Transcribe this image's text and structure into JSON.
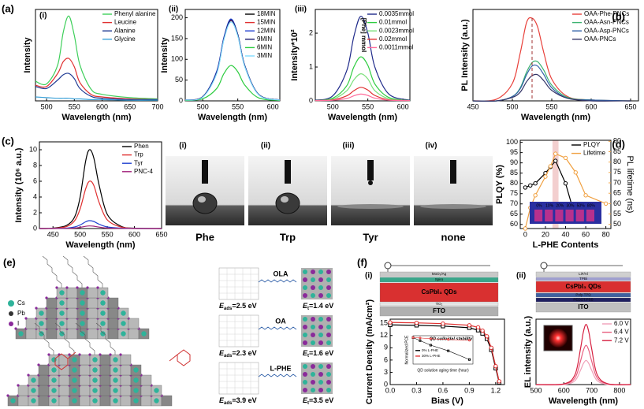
{
  "panel_letters": {
    "a": "(a)",
    "b": "(b)",
    "c": "(c)",
    "d": "(d)",
    "e": "(e)",
    "f": "(f)"
  },
  "chart_data": [
    {
      "type": "line",
      "panel_label": "(i)",
      "xlabel": "Wavelength (nm)",
      "ylabel": "Intensity",
      "xlim": [
        480,
        700
      ],
      "ylim": [
        0,
        140
      ],
      "xticks": [
        500,
        550,
        600,
        650,
        700
      ],
      "legend": "upper right",
      "smooth": true,
      "x": [
        480,
        500,
        520,
        530,
        540,
        550,
        560,
        580,
        600,
        650,
        700
      ],
      "series": [
        {
          "name": "Phenyl alanine",
          "color": "#3ecf5a",
          "values": [
            30,
            26,
            55,
            105,
            130,
            100,
            55,
            18,
            10,
            5,
            3
          ]
        },
        {
          "name": "Leucine",
          "color": "#e03030",
          "values": [
            24,
            22,
            42,
            60,
            65,
            52,
            28,
            10,
            6,
            3,
            2
          ]
        },
        {
          "name": "Alanine",
          "color": "#1f3a93",
          "values": [
            22,
            19,
            32,
            40,
            42,
            34,
            19,
            7,
            4,
            2,
            2
          ]
        },
        {
          "name": "Glycine",
          "color": "#3aa0d8",
          "values": [
            6,
            5,
            4,
            4,
            4,
            3,
            3,
            2,
            2,
            1,
            1
          ]
        }
      ]
    },
    {
      "type": "line",
      "panel_label": "(ii)",
      "xlabel": "Wavelength (nm)",
      "ylabel": "Intensity",
      "xlim": [
        475,
        610
      ],
      "ylim": [
        0,
        220
      ],
      "xticks": [
        500,
        550,
        600
      ],
      "yticks": [
        0,
        50,
        100,
        150,
        200
      ],
      "legend": "upper right",
      "smooth": true,
      "x": [
        475,
        500,
        520,
        530,
        540,
        550,
        560,
        580,
        610
      ],
      "series": [
        {
          "name": "18MIN",
          "color": "#000000",
          "values": [
            2,
            10,
            70,
            150,
            195,
            160,
            85,
            15,
            2
          ]
        },
        {
          "name": "15MIN",
          "color": "#e03030",
          "values": [
            2,
            10,
            68,
            148,
            193,
            158,
            83,
            15,
            2
          ]
        },
        {
          "name": "12MIN",
          "color": "#2040d0",
          "values": [
            2,
            10,
            72,
            152,
            197,
            160,
            85,
            15,
            2
          ]
        },
        {
          "name": "9MIN",
          "color": "#1a1a6e",
          "values": [
            2,
            10,
            69,
            149,
            194,
            159,
            84,
            15,
            2
          ]
        },
        {
          "name": "6MIN",
          "color": "#2ecc40",
          "values": [
            1,
            5,
            30,
            65,
            85,
            70,
            38,
            7,
            1
          ]
        },
        {
          "name": "3MIN",
          "color": "#7fdbff",
          "values": [
            2,
            9,
            66,
            146,
            190,
            156,
            82,
            14,
            2
          ]
        }
      ]
    },
    {
      "type": "line",
      "panel_label": "(iii)",
      "xlabel": "Wavelength (nm)",
      "ylabel": "Intensity*10²",
      "xlim": [
        475,
        610
      ],
      "ylim": [
        0,
        2.7
      ],
      "xticks": [
        500,
        550,
        600
      ],
      "yticks": [
        0,
        1,
        2
      ],
      "legend": "upper right",
      "legend_title": "[Phe] mmol",
      "smooth": true,
      "x": [
        475,
        500,
        520,
        530,
        540,
        550,
        560,
        580,
        610
      ],
      "series": [
        {
          "name": "0.0035mmol",
          "color": "#1f2a8a",
          "values": [
            0.02,
            0.15,
            0.9,
            1.9,
            2.5,
            2.0,
            1.0,
            0.2,
            0.02
          ]
        },
        {
          "name": "0.01mmol",
          "color": "#2ecc40",
          "values": [
            0.01,
            0.08,
            0.45,
            1.0,
            1.3,
            1.05,
            0.5,
            0.1,
            0.01
          ]
        },
        {
          "name": "0.0023mmol",
          "color": "#7be07b",
          "values": [
            0.01,
            0.05,
            0.3,
            0.62,
            0.8,
            0.65,
            0.3,
            0.06,
            0.01
          ]
        },
        {
          "name": "0.02mmol",
          "color": "#e03030",
          "values": [
            0.01,
            0.03,
            0.15,
            0.3,
            0.4,
            0.32,
            0.16,
            0.03,
            0.01
          ]
        },
        {
          "name": "0.0011mmol",
          "color": "#ff6b9a",
          "values": [
            0.01,
            0.02,
            0.07,
            0.15,
            0.2,
            0.16,
            0.08,
            0.02,
            0.01
          ]
        }
      ]
    },
    {
      "type": "line",
      "xlabel": "Wavelength (nm)",
      "ylabel": "PL Intensity (a.u.)",
      "xlim": [
        450,
        660
      ],
      "ylim": [
        0,
        1.05
      ],
      "xticks": [
        450,
        500,
        550,
        600,
        650
      ],
      "legend": "upper right",
      "smooth": true,
      "peak_line": true,
      "x": [
        450,
        480,
        500,
        510,
        518,
        525,
        532,
        540,
        550,
        570,
        600,
        650
      ],
      "series": [
        {
          "name": "OAA-Phe-PNCs",
          "color": "#e8403a",
          "values": [
            0,
            0.02,
            0.2,
            0.55,
            0.9,
            0.95,
            0.85,
            0.55,
            0.25,
            0.05,
            0.01,
            0
          ]
        },
        {
          "name": "OAA-Asn-PNCs",
          "color": "#3cb371",
          "values": [
            0,
            0,
            0.05,
            0.15,
            0.33,
            0.44,
            0.45,
            0.35,
            0.18,
            0.04,
            0.01,
            0
          ]
        },
        {
          "name": "OAA-Asp-PNCs",
          "color": "#2f5fa8",
          "values": [
            0,
            0,
            0.05,
            0.14,
            0.3,
            0.4,
            0.4,
            0.3,
            0.15,
            0.03,
            0.01,
            0
          ]
        },
        {
          "name": "OAA-PNCs",
          "color": "#333366",
          "values": [
            0,
            0,
            0.04,
            0.1,
            0.22,
            0.29,
            0.3,
            0.23,
            0.12,
            0.03,
            0,
            0
          ]
        }
      ]
    },
    {
      "type": "line",
      "xlabel": "Wavelength (nm)",
      "ylabel": "Intensity (10⁶ a.u.)",
      "xlim": [
        425,
        650
      ],
      "ylim": [
        0,
        11
      ],
      "xticks": [
        450,
        500,
        550,
        600,
        650
      ],
      "yticks": [
        0,
        2,
        4,
        6,
        8,
        10
      ],
      "legend": "upper right",
      "smooth": true,
      "x": [
        425,
        450,
        475,
        490,
        500,
        510,
        517,
        525,
        535,
        550,
        575,
        600,
        650
      ],
      "series": [
        {
          "name": "Phen",
          "color": "#000000",
          "values": [
            0,
            0.05,
            0.4,
            1.5,
            4,
            8.5,
            10,
            9,
            5.5,
            1.8,
            0.3,
            0.05,
            0
          ]
        },
        {
          "name": "Trp",
          "color": "#e03030",
          "values": [
            0,
            0.03,
            0.25,
            1,
            2.5,
            5,
            6,
            5.5,
            3.3,
            1.1,
            0.2,
            0.03,
            0
          ]
        },
        {
          "name": "Tyr",
          "color": "#2040d0",
          "values": [
            0,
            0.01,
            0.05,
            0.2,
            0.45,
            0.85,
            1,
            0.9,
            0.55,
            0.2,
            0.05,
            0.01,
            0
          ]
        },
        {
          "name": "PNC-4",
          "color": "#a0207a",
          "values": [
            0,
            0,
            0.02,
            0.06,
            0.15,
            0.28,
            0.33,
            0.3,
            0.18,
            0.06,
            0.02,
            0,
            0
          ]
        }
      ]
    },
    {
      "type": "line",
      "xlabel": "L-PHE Contents",
      "ylabel": "PLQY (%)",
      "y2label": "PL lifetime (ns)",
      "y2color": "#f0a040",
      "xlim": [
        -5,
        85
      ],
      "ylim": [
        58,
        101
      ],
      "y2lim": [
        48,
        90.5
      ],
      "xticks": [
        0,
        20,
        40,
        60,
        80
      ],
      "yticks": [
        60,
        65,
        70,
        75,
        80,
        85,
        90,
        95,
        100
      ],
      "y2ticks": [
        50,
        55,
        60,
        65,
        70,
        75,
        80,
        85,
        90
      ],
      "legend": "upper right",
      "highlight_x": [
        27,
        33
      ],
      "inset_labels": [
        "0%",
        "10%",
        "20%",
        "30%",
        "50%",
        "80%"
      ],
      "series": [
        {
          "name": "PLQY",
          "color": "#000000",
          "marker": "circle",
          "x": [
            0,
            5,
            10,
            20,
            25,
            30,
            40,
            50
          ],
          "values": [
            78,
            79,
            80,
            85,
            88,
            91,
            80,
            63
          ]
        },
        {
          "name": "Lifetime",
          "color": "#f0a040",
          "marker": "circle",
          "axis": "y2",
          "x": [
            0,
            5,
            10,
            20,
            25,
            30,
            40,
            50,
            60,
            80
          ],
          "values": [
            48,
            58,
            64,
            73,
            78,
            84,
            82,
            75,
            64,
            60
          ]
        }
      ]
    },
    {
      "type": "line",
      "xlabel": "Bias (V)",
      "ylabel": "Current Density (mA/cm²)",
      "xlim": [
        0,
        1.3
      ],
      "ylim": [
        0,
        16
      ],
      "xticks": [
        {
          "value": 0,
          "label": "0.0"
        },
        0.3,
        0.6,
        0.9,
        1.2
      ],
      "yticks": [
        0,
        3,
        6,
        9,
        12,
        15
      ],
      "x": [
        0,
        0.3,
        0.6,
        0.9,
        1.0,
        1.05,
        1.1,
        1.15,
        1.2,
        1.24
      ],
      "series": [
        {
          "color": "#000000",
          "marker": "square",
          "values": [
            14.6,
            14.5,
            14.3,
            13.9,
            13.3,
            12.5,
            11.2,
            8.5,
            4,
            0.5
          ]
        },
        {
          "color": "#e03030",
          "marker": "circle",
          "values": [
            15.2,
            15.1,
            14.9,
            14.5,
            14,
            13.2,
            11.8,
            9,
            4.5,
            0.8
          ]
        }
      ]
    },
    {
      "type": "line",
      "title": "QD colloidal stability",
      "xlabel": "QD solution aging time (hour)",
      "ylabel": "Normalized PCE",
      "xlim": [
        0,
        170
      ],
      "ylim": [
        0.3,
        1.05
      ],
      "legend": "lower left",
      "series": [
        {
          "name": "0% L-PHE",
          "color": "#000000",
          "marker": "square",
          "x": [
            0,
            20,
            50,
            100,
            160
          ],
          "values": [
            1,
            0.92,
            0.8,
            0.65,
            0.42
          ]
        },
        {
          "name": "30% L-PHE",
          "color": "#e03030",
          "marker": "circle",
          "x": [
            0,
            20,
            50,
            100,
            160
          ],
          "values": [
            1,
            0.99,
            0.97,
            0.95,
            0.93
          ]
        }
      ]
    },
    {
      "type": "line",
      "xlabel": "Wavelength (nm)",
      "ylabel": "EL intensity (a.u.)",
      "xlim": [
        500,
        840
      ],
      "ylim": [
        0,
        1
      ],
      "xticks": [
        500,
        600,
        700,
        800
      ],
      "legend": "upper right",
      "smooth": true,
      "x": [
        500,
        600,
        640,
        660,
        670,
        680,
        690,
        700,
        720,
        760,
        840
      ],
      "series": [
        {
          "name": "6.0 V",
          "color": "#f0a0b8",
          "values": [
            0,
            0,
            0.06,
            0.22,
            0.32,
            0.37,
            0.32,
            0.22,
            0.06,
            0,
            0
          ]
        },
        {
          "name": "6.4 V",
          "color": "#e86080",
          "values": [
            0,
            0.01,
            0.1,
            0.36,
            0.52,
            0.6,
            0.52,
            0.36,
            0.1,
            0.01,
            0
          ]
        },
        {
          "name": "7.2 V",
          "color": "#d62040",
          "values": [
            0,
            0.01,
            0.15,
            0.55,
            0.8,
            0.92,
            0.8,
            0.55,
            0.15,
            0.01,
            0
          ]
        }
      ]
    }
  ],
  "photos": [
    {
      "numeral": "(i)",
      "label": "Phe"
    },
    {
      "numeral": "(ii)",
      "label": "Trp"
    },
    {
      "numeral": "(iii)",
      "label": "Tyr"
    },
    {
      "numeral": "(iv)",
      "label": "none"
    }
  ],
  "structure": {
    "legend": [
      "Cs",
      "Pb",
      "I"
    ],
    "ligands": [
      {
        "name": "OLA",
        "color": "#000000",
        "ads_sym": "E",
        "ads_sub": "ads",
        "ads_val": "=2.5 eV",
        "t_sym": "E",
        "t_sub": "t",
        "t_val": "=1.4 eV"
      },
      {
        "name": "OA",
        "color": "#000000",
        "ads_sym": "E",
        "ads_sub": "ads",
        "ads_val": "=2.3 eV",
        "t_sym": "E",
        "t_sub": "t",
        "t_val": "=1.6 eV"
      },
      {
        "name": "L-PHE",
        "color": "#e03030",
        "ads_sym": "E",
        "ads_sub": "ads",
        "ads_val": "=3.9 eV",
        "t_sym": "E",
        "t_sub": "t",
        "t_val": "=3.5 eV"
      }
    ]
  },
  "devices": [
    {
      "numeral": "(i)",
      "layers": [
        "MoO₃/Ag",
        "Spiro",
        "CsPbI₃ QDs",
        "TiO₂",
        "FTO"
      ]
    },
    {
      "numeral": "(ii)",
      "layers": [
        "LiF/Al",
        "TPBi",
        "CsPbI₃ QDs",
        "Poly-TPD",
        "PEDOT:PSS",
        "ITO"
      ]
    }
  ]
}
